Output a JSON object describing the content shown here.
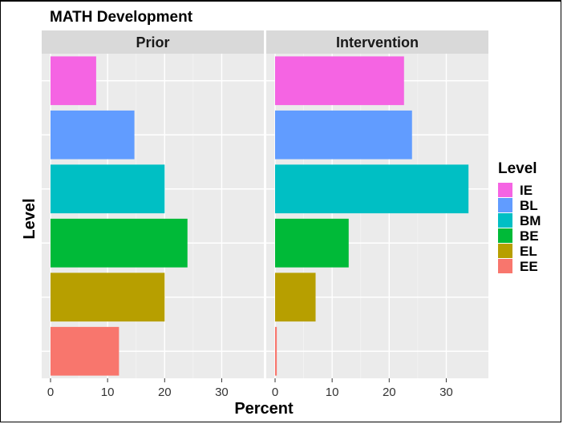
{
  "chart_data": {
    "type": "bar",
    "orientation": "horizontal",
    "title": "MATH Development",
    "xlabel": "Percent",
    "ylabel": "Level",
    "xlim": [
      0,
      35
    ],
    "x_ticks": [
      0,
      10,
      20,
      30
    ],
    "grid": true,
    "legend_placement": "right",
    "legend_title": "Level",
    "categories": [
      "IE",
      "BL",
      "BM",
      "BE",
      "EL",
      "EE"
    ],
    "colors": [
      "#F564E3",
      "#619CFF",
      "#00BFC4",
      "#00BA38",
      "#B79F00",
      "#F8766D"
    ],
    "panels": [
      {
        "label": "Prior",
        "values": [
          8,
          14.7,
          20,
          24,
          20,
          12
        ]
      },
      {
        "label": "Intervention",
        "values": [
          22.6,
          24,
          33.9,
          12.9,
          7.1,
          0.3
        ]
      }
    ]
  }
}
